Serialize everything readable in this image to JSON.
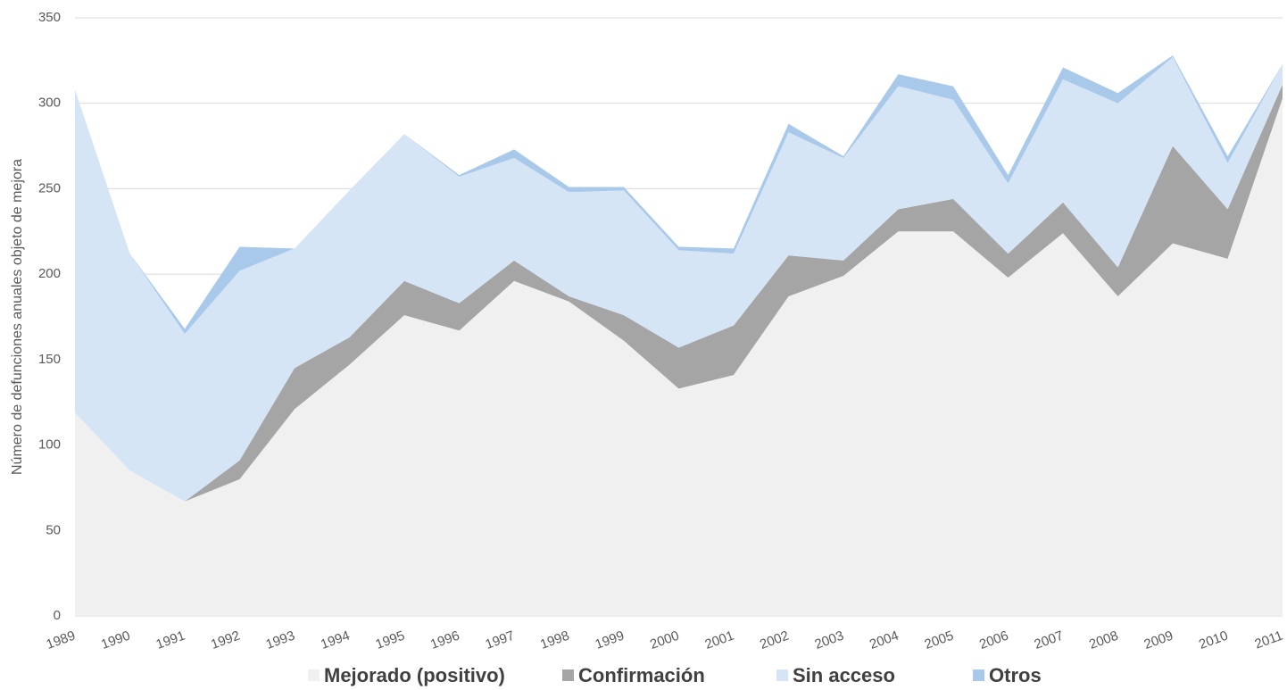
{
  "chart_data": {
    "type": "stacked_area",
    "y_label": "Número de defunciones anuales objeto de mejora",
    "categories": [
      "1989",
      "1990",
      "1991",
      "1992",
      "1993",
      "1994",
      "1995",
      "1996",
      "1997",
      "1998",
      "1999",
      "2000",
      "2001",
      "2002",
      "2003",
      "2004",
      "2005",
      "2006",
      "2007",
      "2008",
      "2009",
      "2010",
      "2011"
    ],
    "series": [
      {
        "name": "Mejorado (positivo)",
        "color": "#f0f0f0",
        "values": [
          119,
          85,
          67,
          80,
          121,
          147,
          176,
          167,
          196,
          184,
          161,
          133,
          141,
          187,
          199,
          225,
          225,
          198,
          224,
          187,
          218,
          209,
          303
        ]
      },
      {
        "name": "Confirmación",
        "color": "#a5a5a5",
        "values": [
          0,
          0,
          0,
          11,
          24,
          16,
          20,
          16,
          12,
          3,
          15,
          24,
          29,
          24,
          9,
          13,
          19,
          14,
          18,
          17,
          57,
          29,
          8
        ]
      },
      {
        "name": "Sin acceso",
        "color": "#d6e5f5",
        "values": [
          189,
          127,
          98,
          111,
          70,
          86,
          86,
          74,
          60,
          61,
          73,
          57,
          42,
          72,
          60,
          72,
          58,
          41,
          72,
          96,
          52,
          27,
          12
        ]
      },
      {
        "name": "Otros",
        "color": "#a9c9eb",
        "values": [
          0,
          0,
          3,
          14,
          0,
          0,
          0,
          1,
          5,
          3,
          2,
          2,
          3,
          5,
          1,
          7,
          8,
          5,
          7,
          6,
          1,
          4,
          0
        ]
      }
    ],
    "ylim": [
      0,
      350
    ],
    "yticks": [
      0,
      50,
      100,
      150,
      200,
      250,
      300,
      350
    ],
    "grid": true,
    "legend": "bottom"
  }
}
